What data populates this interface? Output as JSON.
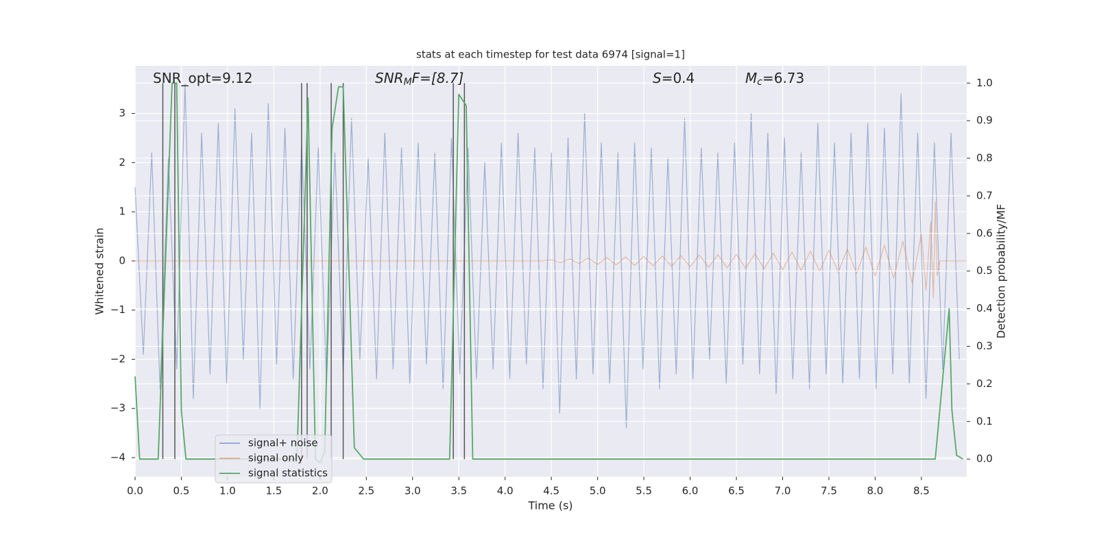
{
  "chart_data": {
    "type": "line",
    "title": "stats at each timestep for test data 6974 [signal=1]",
    "xlabel": "Time (s)",
    "ylabel": "Whitened strain",
    "y2label": "Detection probability/MF",
    "xlim": [
      0,
      8.99
    ],
    "ylim": [
      -4.39,
      3.97
    ],
    "y2lim": [
      -0.047,
      1.046
    ],
    "xticks": [
      {
        "value": 0,
        "label": "0.0"
      },
      {
        "value": 0.5,
        "label": "0.5"
      },
      {
        "value": 1,
        "label": "1.0"
      },
      {
        "value": 1.5,
        "label": "1.5"
      },
      {
        "value": 2,
        "label": "2.0"
      },
      {
        "value": 2.5,
        "label": "2.5"
      },
      {
        "value": 3,
        "label": "3.0"
      },
      {
        "value": 3.5,
        "label": "3.5"
      },
      {
        "value": 4,
        "label": "4.0"
      },
      {
        "value": 4.5,
        "label": "4.5"
      },
      {
        "value": 5,
        "label": "5.0"
      },
      {
        "value": 5.5,
        "label": "5.5"
      },
      {
        "value": 6,
        "label": "6.0"
      },
      {
        "value": 6.5,
        "label": "6.5"
      },
      {
        "value": 7,
        "label": "7.0"
      },
      {
        "value": 7.5,
        "label": "7.5"
      },
      {
        "value": 8,
        "label": "8.0"
      },
      {
        "value": 8.5,
        "label": "8.5"
      }
    ],
    "yticks": [
      {
        "value": -4,
        "label": "−4"
      },
      {
        "value": -3,
        "label": "−3"
      },
      {
        "value": -2,
        "label": "−2"
      },
      {
        "value": -1,
        "label": "−1"
      },
      0,
      1,
      2,
      3
    ],
    "y2ticks": [
      {
        "value": 0,
        "label": "0.0"
      },
      0.1,
      0.2,
      0.3,
      0.4,
      0.5,
      0.6,
      0.7,
      0.8,
      0.9,
      {
        "value": 1,
        "label": "1.0"
      }
    ],
    "grid": true,
    "legend_loc": "lower left",
    "annotations": [
      [
        "SNR_opt=9.12"
      ],
      [
        "SNR",
        "M",
        "F=[8.7]"
      ],
      [
        "S",
        "=0.4"
      ],
      [
        "M",
        "c",
        "=6.73"
      ]
    ],
    "vlines": [
      0.3,
      0.43,
      1.8,
      1.86,
      2.12,
      2.25,
      3.44,
      3.56
    ],
    "vline_range": [
      0,
      1
    ],
    "vline_color": "#555555",
    "series": [
      {
        "name": "signal+ noise",
        "color": "#4c72b0",
        "x": [
          0,
          0.09,
          0.18,
          0.27,
          0.36,
          0.45,
          0.54,
          0.63,
          0.72,
          0.81,
          0.9,
          0.99,
          1.08,
          1.17,
          1.26,
          1.35,
          1.44,
          1.53,
          1.62,
          1.71,
          1.8,
          1.89,
          1.98,
          2.07,
          2.16,
          2.25,
          2.34,
          2.43,
          2.52,
          2.61,
          2.7,
          2.79,
          2.88,
          2.97,
          3.06,
          3.15,
          3.24,
          3.33,
          3.42,
          3.51,
          3.6,
          3.69,
          3.78,
          3.87,
          3.96,
          4.05,
          4.14,
          4.23,
          4.32,
          4.41,
          4.5,
          4.59,
          4.68,
          4.77,
          4.86,
          4.95,
          5.04,
          5.13,
          5.22,
          5.31,
          5.4,
          5.49,
          5.58,
          5.67,
          5.76,
          5.85,
          5.94,
          6.03,
          6.12,
          6.21,
          6.3,
          6.39,
          6.48,
          6.57,
          6.66,
          6.75,
          6.84,
          6.93,
          7.02,
          7.11,
          7.2,
          7.29,
          7.38,
          7.47,
          7.56,
          7.65,
          7.74,
          7.83,
          7.92,
          8.01,
          8.1,
          8.19,
          8.28,
          8.37,
          8.46,
          8.55,
          8.64,
          8.73,
          8.82,
          8.91
        ],
        "values": [
          1.5,
          -1.9,
          2.2,
          -2.6,
          2.1,
          -2.2,
          3.6,
          -2.8,
          2.6,
          -2.3,
          2.8,
          -2.5,
          3.1,
          -2.0,
          2.6,
          -3.0,
          3.2,
          -2.1,
          2.7,
          -2.4,
          2.4,
          -2.2,
          2.3,
          -2.5,
          2.2,
          -2.3,
          2.9,
          -2.0,
          2.1,
          -2.4,
          2.6,
          -2.2,
          2.3,
          -2.5,
          2.4,
          -2.1,
          2.2,
          -2.6,
          2.5,
          -2.3,
          2.3,
          -2.4,
          2.0,
          -2.2,
          2.4,
          -2.4,
          2.6,
          -2.1,
          2.3,
          -2.6,
          2.2,
          -3.1,
          2.5,
          -2.4,
          3.0,
          -2.3,
          2.4,
          -2.5,
          2.2,
          -3.4,
          2.4,
          -2.2,
          2.3,
          -2.6,
          2.1,
          -2.3,
          2.9,
          -2.4,
          2.3,
          -2.0,
          2.2,
          -2.5,
          2.4,
          -2.1,
          3.0,
          -2.3,
          2.6,
          -2.7,
          2.5,
          -2.4,
          2.2,
          -2.6,
          2.8,
          -2.3,
          2.4,
          -2.5,
          2.6,
          -2.4,
          2.8,
          -2.6,
          2.7,
          -2.3,
          3.4,
          -2.5,
          2.6,
          -2.8,
          2.4,
          -2.2,
          2.6,
          -2.0
        ]
      },
      {
        "name": "signal only",
        "color": "#dd8452",
        "x": [
          0,
          4.4,
          4.5,
          4.6,
          4.7,
          4.8,
          4.9,
          5.0,
          5.1,
          5.2,
          5.3,
          5.4,
          5.5,
          5.6,
          5.7,
          5.8,
          5.9,
          6.0,
          6.1,
          6.2,
          6.3,
          6.4,
          6.5,
          6.6,
          6.7,
          6.8,
          6.9,
          7.0,
          7.1,
          7.2,
          7.3,
          7.4,
          7.5,
          7.6,
          7.7,
          7.8,
          7.9,
          8.0,
          8.1,
          8.2,
          8.3,
          8.4,
          8.5,
          8.55,
          8.6,
          8.63,
          8.65,
          8.67,
          8.7,
          8.99
        ],
        "values": [
          0,
          0,
          0.02,
          -0.03,
          0.04,
          -0.05,
          0.06,
          -0.07,
          0.07,
          -0.08,
          0.08,
          -0.09,
          0.09,
          -0.1,
          0.1,
          -0.11,
          0.11,
          -0.12,
          0.12,
          -0.13,
          0.13,
          -0.14,
          0.14,
          -0.15,
          0.15,
          -0.16,
          0.16,
          -0.18,
          0.18,
          -0.19,
          0.2,
          -0.21,
          0.22,
          -0.23,
          0.24,
          -0.26,
          0.28,
          -0.3,
          0.32,
          -0.35,
          0.4,
          -0.45,
          0.55,
          -0.6,
          0.8,
          -0.75,
          1.2,
          -0.3,
          0,
          0
        ]
      },
      {
        "name": "signal statistics",
        "color": "#55a868",
        "axis": "y2",
        "x": [
          0,
          0.05,
          0.25,
          0.4,
          0.45,
          0.5,
          0.55,
          1.75,
          1.87,
          1.95,
          2.0,
          2.05,
          2.13,
          2.2,
          2.25,
          2.3,
          2.37,
          2.47,
          3.4,
          3.5,
          3.58,
          3.65,
          8.65,
          8.8,
          8.83,
          8.88,
          8.95
        ],
        "values": [
          0.22,
          0,
          0,
          1.0,
          1.0,
          0.13,
          0,
          0,
          0.96,
          0,
          -0.01,
          0.02,
          0.88,
          0.99,
          0.99,
          0.6,
          0.03,
          0,
          0,
          0.97,
          0.94,
          0,
          0,
          0.4,
          0.13,
          0.01,
          0
        ]
      }
    ]
  }
}
